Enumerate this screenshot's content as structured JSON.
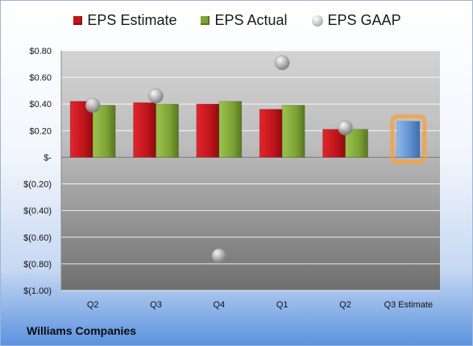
{
  "legend": {
    "estimate": "EPS Estimate",
    "actual": "EPS Actual",
    "gaap": "EPS GAAP"
  },
  "company": "Williams Companies",
  "colors": {
    "estimate": "#c0151b",
    "actual": "#7ea436",
    "gaap": "#a6a6a6",
    "next_estimate": "#5f8fd0",
    "next_estimate_glow": "#f6a03c"
  },
  "chart_data": {
    "type": "bar",
    "categories": [
      "Q2",
      "Q3",
      "Q4",
      "Q1",
      "Q2",
      "Q3 Estimate"
    ],
    "series": [
      {
        "name": "EPS Estimate",
        "values": [
          0.42,
          0.41,
          0.4,
          0.36,
          0.21,
          null
        ]
      },
      {
        "name": "EPS Actual",
        "values": [
          0.39,
          0.4,
          0.42,
          0.39,
          0.21,
          null
        ]
      },
      {
        "name": "EPS GAAP",
        "values": [
          0.39,
          0.46,
          -0.74,
          0.71,
          0.22,
          null
        ]
      },
      {
        "name": "",
        "values": [
          null,
          null,
          null,
          null,
          null,
          0.27
        ]
      }
    ],
    "y_ticks": [
      "$0.80",
      "$0.60",
      "$0.40",
      "$0.20",
      "$-",
      "$(0.20)",
      "$(0.40)",
      "$(0.60)",
      "$(0.80)",
      "$(1.00)"
    ],
    "ylim": [
      -1.0,
      0.8
    ],
    "grid": true,
    "legend_position": "top"
  }
}
